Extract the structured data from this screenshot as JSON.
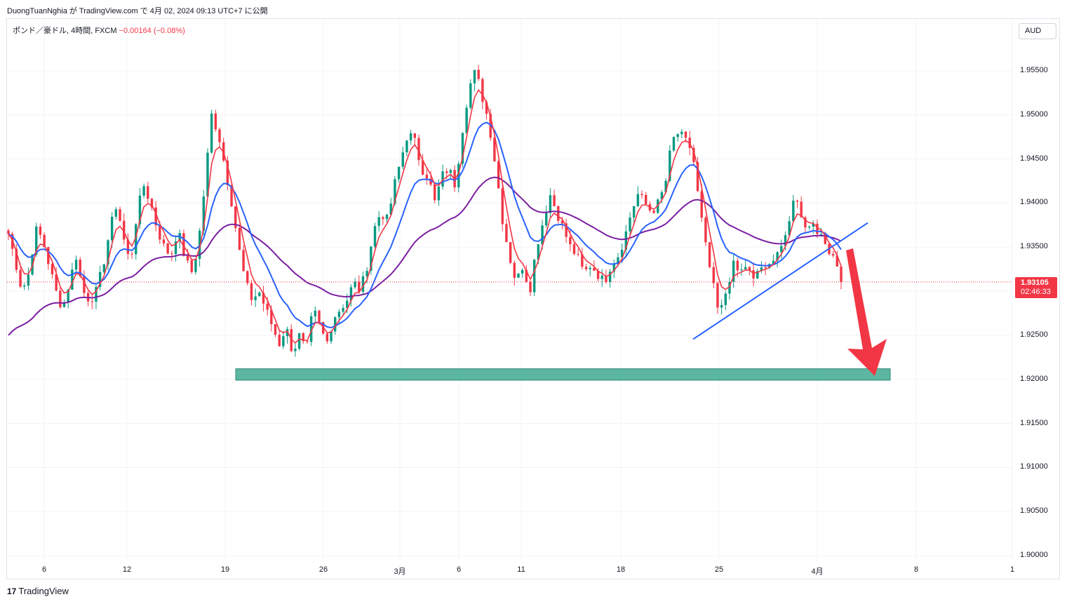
{
  "header": {
    "text": "DuongTuanNghia が TradingView.com で 4月 02, 2024 09:13 UTC+7 に公開"
  },
  "symbol": {
    "name": "ポンド／豪ドル, 4時間, FXCM",
    "change": "−0.00164 (−0.08%)"
  },
  "currency_button": "AUD",
  "price_tag": {
    "price": "1.93105",
    "countdown": "02:46:33"
  },
  "footer": {
    "logo": "17",
    "brand": "TradingView"
  },
  "colors": {
    "up": "#089981",
    "down": "#f23645",
    "ema_fast": "#f23645",
    "ema_mid": "#2962ff",
    "ema_slow": "#7b1fa2",
    "zone": "#3fa98f",
    "arrow": "#f23645",
    "trendline": "#2962ff"
  },
  "chart_data": {
    "type": "candlestick",
    "y_ticks": [
      "1.95500",
      "1.95000",
      "1.94500",
      "1.94000",
      "1.93500",
      "1.93105",
      "1.92500",
      "1.92000",
      "1.91500",
      "1.91000",
      "1.90500",
      "1.90000"
    ],
    "x_ticks": [
      "6",
      "12",
      "19",
      "26",
      "3月",
      "6",
      "11",
      "18",
      "25",
      "4月",
      "8",
      "1"
    ],
    "ylim": [
      1.8995,
      1.9595
    ],
    "last_price": 1.93105,
    "support_zone": [
      1.9199,
      1.9212
    ],
    "close_path": [
      1.9365,
      1.9335,
      1.93,
      1.932,
      1.937,
      1.936,
      1.933,
      1.93,
      1.928,
      1.931,
      1.934,
      1.93,
      1.929,
      1.93,
      1.933,
      1.937,
      1.94,
      1.936,
      1.933,
      1.939,
      1.942,
      1.94,
      1.937,
      1.935,
      1.934,
      1.937,
      1.934,
      1.932,
      1.935,
      1.942,
      1.95,
      1.948,
      1.944,
      1.94,
      1.935,
      1.931,
      1.929,
      1.93,
      1.928,
      1.926,
      1.924,
      1.926,
      1.923,
      1.925,
      1.923,
      1.928,
      1.926,
      1.924,
      1.927,
      1.928,
      1.929,
      1.931,
      1.93,
      1.933,
      1.937,
      1.939,
      1.938,
      1.942,
      1.945,
      1.948,
      1.947,
      1.944,
      1.943,
      1.94,
      1.943,
      1.944,
      1.942,
      1.948,
      1.953,
      1.955,
      1.952,
      1.949,
      1.944,
      1.938,
      1.934,
      1.931,
      1.933,
      1.93,
      1.935,
      1.938,
      1.941,
      1.939,
      1.937,
      1.935,
      1.934,
      1.932,
      1.933,
      1.932,
      1.931,
      1.933,
      1.934,
      1.936,
      1.939,
      1.941,
      1.94,
      1.939,
      1.94,
      1.942,
      1.947,
      1.948,
      1.947,
      1.946,
      1.94,
      1.935,
      1.931,
      1.927,
      1.93,
      1.933,
      1.932,
      1.933,
      1.931,
      1.933,
      1.932,
      1.934,
      1.935,
      1.936,
      1.941,
      1.939,
      1.937,
      1.938,
      1.936,
      1.935,
      1.934,
      1.932
    ]
  }
}
